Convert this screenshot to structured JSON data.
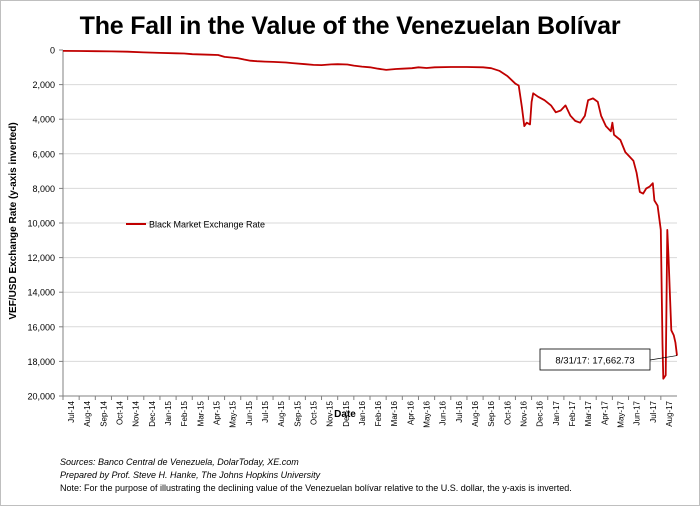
{
  "chart_data": {
    "type": "line",
    "title": "The Fall in the Value of the Venezuelan Bolívar",
    "xlabel": "Date",
    "ylabel": "VEF/USD Exchange Rate (y-axis inverted)",
    "y_inverted": true,
    "ylim": [
      0,
      20000
    ],
    "yticks": [
      0,
      2000,
      4000,
      6000,
      8000,
      10000,
      12000,
      14000,
      16000,
      18000,
      20000
    ],
    "ytick_labels": [
      "0",
      "2,000",
      "4,000",
      "6,000",
      "8,000",
      "10,000",
      "12,000",
      "14,000",
      "16,000",
      "18,000",
      "20,000"
    ],
    "xtick_labels": [
      "Jul-14",
      "Aug-14",
      "Sep-14",
      "Oct-14",
      "Nov-14",
      "Dec-14",
      "Jan-15",
      "Feb-15",
      "Mar-15",
      "Apr-15",
      "May-15",
      "Jun-15",
      "Jul-15",
      "Aug-15",
      "Sep-15",
      "Oct-15",
      "Nov-15",
      "Dec-15",
      "Jan-16",
      "Feb-16",
      "Mar-16",
      "Apr-16",
      "May-16",
      "Jun-16",
      "Jul-16",
      "Aug-16",
      "Sep-16",
      "Oct-16",
      "Nov-16",
      "Dec-16",
      "Jan-17",
      "Feb-17",
      "Mar-17",
      "Apr-17",
      "May-17",
      "Jun-17",
      "Jul-17",
      "Aug-17"
    ],
    "x_unit": "months since Jul-14",
    "x_range": [
      0,
      38
    ],
    "legend_position": "center-left",
    "grid": true,
    "series": [
      {
        "name": "Black Market Exchange Rate",
        "color": "#c00000",
        "points": [
          [
            0,
            50
          ],
          [
            1,
            60
          ],
          [
            2,
            70
          ],
          [
            3,
            80
          ],
          [
            4,
            100
          ],
          [
            5,
            140
          ],
          [
            6,
            170
          ],
          [
            7,
            190
          ],
          [
            7.5,
            200
          ],
          [
            8,
            240
          ],
          [
            9,
            270
          ],
          [
            9.6,
            290
          ],
          [
            10,
            400
          ],
          [
            10.8,
            470
          ],
          [
            11.2,
            550
          ],
          [
            11.6,
            620
          ],
          [
            12,
            650
          ],
          [
            12.5,
            670
          ],
          [
            13,
            690
          ],
          [
            13.8,
            720
          ],
          [
            14.2,
            760
          ],
          [
            15,
            820
          ],
          [
            15.5,
            860
          ],
          [
            16,
            870
          ],
          [
            16.6,
            830
          ],
          [
            17,
            820
          ],
          [
            17.6,
            840
          ],
          [
            18,
            900
          ],
          [
            18.5,
            960
          ],
          [
            19,
            1000
          ],
          [
            19.5,
            1080
          ],
          [
            20,
            1150
          ],
          [
            20.6,
            1100
          ],
          [
            21,
            1080
          ],
          [
            21.6,
            1050
          ],
          [
            22,
            1000
          ],
          [
            22.5,
            1040
          ],
          [
            23,
            1000
          ],
          [
            24,
            980
          ],
          [
            25,
            980
          ],
          [
            26,
            1000
          ],
          [
            26.5,
            1050
          ],
          [
            27,
            1200
          ],
          [
            27.5,
            1500
          ],
          [
            28,
            1950
          ],
          [
            28.2,
            2050
          ],
          [
            28.4,
            3300
          ],
          [
            28.55,
            4400
          ],
          [
            28.7,
            4200
          ],
          [
            28.9,
            4300
          ],
          [
            29.0,
            3000
          ],
          [
            29.1,
            2500
          ],
          [
            29.4,
            2700
          ],
          [
            29.8,
            2900
          ],
          [
            30.2,
            3200
          ],
          [
            30.5,
            3600
          ],
          [
            30.8,
            3500
          ],
          [
            31.1,
            3200
          ],
          [
            31.4,
            3800
          ],
          [
            31.7,
            4100
          ],
          [
            32.0,
            4200
          ],
          [
            32.3,
            3800
          ],
          [
            32.5,
            2900
          ],
          [
            32.8,
            2800
          ],
          [
            33.1,
            3000
          ],
          [
            33.3,
            3800
          ],
          [
            33.6,
            4400
          ],
          [
            33.9,
            4700
          ],
          [
            34.0,
            4200
          ],
          [
            34.1,
            4900
          ],
          [
            34.5,
            5200
          ],
          [
            34.8,
            5900
          ],
          [
            35.0,
            6100
          ],
          [
            35.3,
            6400
          ],
          [
            35.5,
            7100
          ],
          [
            35.7,
            8200
          ],
          [
            35.9,
            8300
          ],
          [
            36.1,
            8000
          ],
          [
            36.3,
            7900
          ],
          [
            36.5,
            7700
          ],
          [
            36.6,
            8700
          ],
          [
            36.8,
            9000
          ],
          [
            37.0,
            10400
          ],
          [
            37.1,
            17000
          ],
          [
            37.15,
            19000
          ],
          [
            37.3,
            18800
          ],
          [
            37.4,
            10400
          ],
          [
            37.48,
            12100
          ],
          [
            37.55,
            13800
          ],
          [
            37.65,
            16200
          ],
          [
            37.8,
            16500
          ],
          [
            37.9,
            16900
          ],
          [
            38.0,
            17662.73
          ]
        ]
      }
    ],
    "annotations": [
      {
        "text": "8/31/17: 17,662.73",
        "x": 38.0,
        "y": 17662.73
      }
    ]
  },
  "footnotes": {
    "sources": "Sources: Banco Central de Venezuela, DolarToday, XE.com",
    "prepared_by": "Prepared by Prof. Steve H. Hanke, The Johns Hopkins University",
    "note": "Note: For the purpose of illustrating the declining value of the Venezuelan bolívar relative to the U.S. dollar, the y-axis is inverted."
  }
}
